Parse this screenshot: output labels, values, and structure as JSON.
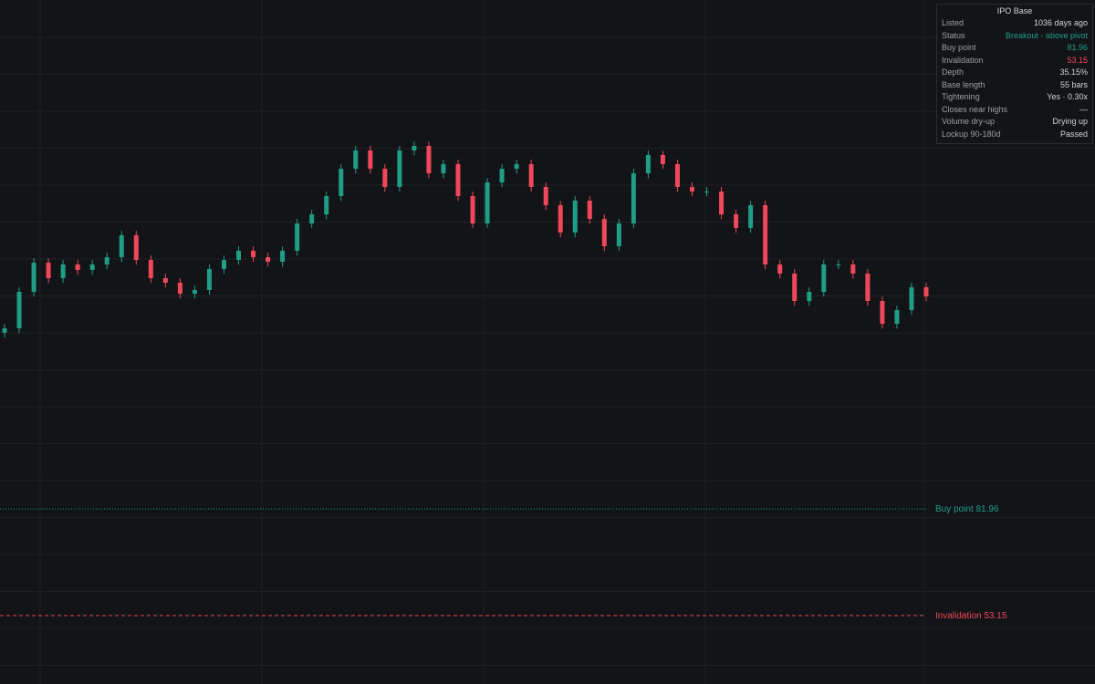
{
  "chart_data": {
    "type": "candlestick",
    "up_color": "#1f9e86",
    "down_color": "#f0485a",
    "ylim": [
      34.69,
      219.34
    ],
    "open": [
      129.5,
      130.71,
      140.56,
      148.43,
      144.25,
      147.94,
      146.46,
      147.94,
      149.91,
      155.82,
      149.17,
      144.25,
      143.02,
      140.06,
      141.05,
      146.71,
      149.17,
      151.64,
      149.91,
      148.68,
      151.64,
      159.02,
      161.48,
      166.41,
      173.79,
      178.72,
      173.79,
      168.87,
      178.72,
      179.95,
      172.56,
      175.02,
      166.41,
      159.02,
      170.1,
      173.79,
      175.02,
      168.87,
      163.95,
      156.56,
      165.18,
      160.25,
      152.87,
      159.02,
      172.56,
      177.49,
      175.02,
      168.87,
      167.64,
      167.64,
      161.48,
      157.79,
      163.95,
      147.94,
      145.48,
      138.09,
      140.56,
      147.94,
      147.94,
      145.48,
      138.09,
      131.94,
      135.63,
      141.79
    ],
    "high": [
      131.91,
      141.76,
      149.63,
      149.63,
      149.14,
      149.14,
      149.14,
      151.11,
      157.02,
      157.02,
      150.37,
      145.45,
      144.22,
      142.25,
      147.91,
      150.37,
      152.84,
      152.84,
      151.11,
      152.84,
      160.22,
      162.68,
      167.61,
      174.99,
      179.92,
      179.92,
      174.99,
      179.92,
      181.15,
      181.15,
      176.22,
      176.22,
      167.61,
      171.3,
      174.99,
      176.22,
      176.22,
      170.07,
      165.15,
      166.38,
      166.38,
      161.45,
      160.22,
      173.76,
      178.69,
      178.69,
      176.22,
      170.07,
      168.84,
      168.84,
      162.68,
      165.15,
      165.15,
      149.14,
      146.68,
      141.76,
      149.14,
      149.14,
      149.14,
      146.68,
      139.29,
      136.83,
      142.99,
      142.99
    ],
    "low": [
      128.2,
      129.41,
      139.26,
      142.95,
      142.95,
      145.16,
      145.16,
      146.64,
      148.61,
      147.87,
      142.95,
      141.72,
      138.76,
      138.76,
      139.75,
      145.41,
      147.87,
      148.61,
      147.38,
      147.38,
      150.34,
      157.72,
      160.18,
      165.11,
      172.49,
      172.49,
      167.57,
      167.57,
      177.42,
      171.26,
      171.26,
      165.11,
      157.72,
      157.72,
      168.8,
      172.49,
      167.57,
      162.65,
      155.26,
      155.26,
      158.95,
      151.57,
      151.57,
      157.72,
      171.26,
      173.72,
      167.57,
      166.34,
      166.34,
      160.18,
      156.49,
      156.49,
      146.64,
      144.18,
      136.79,
      136.79,
      139.26,
      146.64,
      144.18,
      136.79,
      130.64,
      130.64,
      134.33,
      138.03
    ],
    "close": [
      130.71,
      140.56,
      148.43,
      144.25,
      147.94,
      146.46,
      147.94,
      149.91,
      155.82,
      149.17,
      144.25,
      143.02,
      140.06,
      141.05,
      146.71,
      149.17,
      151.64,
      149.91,
      148.68,
      151.64,
      159.02,
      161.48,
      166.41,
      173.79,
      178.72,
      173.79,
      168.87,
      178.72,
      179.95,
      172.56,
      175.02,
      166.41,
      159.02,
      170.1,
      173.79,
      175.02,
      168.87,
      163.95,
      156.56,
      165.18,
      160.25,
      152.87,
      159.02,
      172.56,
      177.49,
      175.02,
      168.87,
      167.64,
      167.64,
      161.48,
      157.79,
      163.95,
      147.94,
      145.48,
      138.09,
      140.56,
      147.94,
      147.94,
      145.48,
      138.09,
      131.94,
      135.63,
      141.79,
      139.33
    ],
    "levels": [
      {
        "label": "Buy point",
        "value": 81.96,
        "color": "#1f9e86",
        "style": "dotted"
      },
      {
        "label": "Invalidation",
        "value": 53.15,
        "color": "#f0485a",
        "style": "dashed"
      }
    ]
  },
  "panel": {
    "title": "IPO Base",
    "rows": [
      {
        "label": "Listed",
        "value": "1036 days ago"
      },
      {
        "label": "Status",
        "value": "Breakout - above pivot",
        "color": "#1f9e86"
      },
      {
        "label": "Buy point",
        "value": 81.96,
        "color": "#1f9e86"
      },
      {
        "label": "Invalidation",
        "value": 53.15,
        "color": "#f0485a"
      },
      {
        "label": "Depth",
        "value": "35.15%"
      },
      {
        "label": "Base length",
        "value": "55 bars"
      },
      {
        "label": "Tightening",
        "value": "Yes · 0.30x"
      },
      {
        "label": "Closes near highs",
        "value": "—"
      },
      {
        "label": "Volume dry-up",
        "value": "Drying up"
      },
      {
        "label": "Lockup 90-180d",
        "value": "Passed"
      }
    ]
  }
}
